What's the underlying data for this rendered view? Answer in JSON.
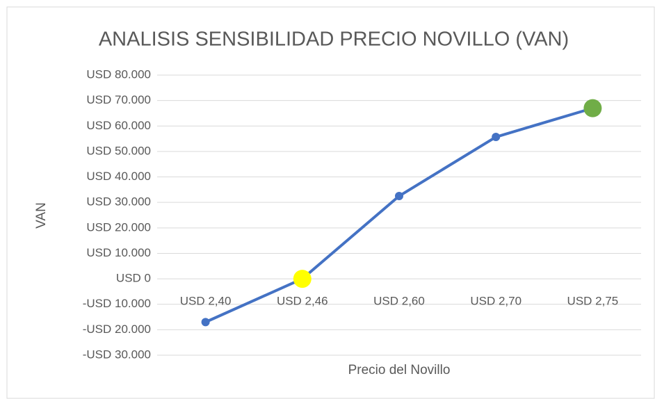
{
  "chart_data": {
    "type": "line",
    "title": "ANALISIS SENSIBILIDAD PRECIO NOVILLO (VAN)",
    "x_label": "Precio del Novillo",
    "y_label": "VAN",
    "categories": [
      "USD 2,40",
      "USD 2,46",
      "USD 2,60",
      "USD 2,70",
      "USD 2,75"
    ],
    "series": [
      {
        "name": "VAN",
        "color": "#4472c4",
        "values": [
          -17000,
          0,
          32500,
          55700,
          67000
        ],
        "marker_colors": [
          "#4472c4",
          "#ffff00",
          "#4472c4",
          "#4472c4",
          "#70ad47"
        ]
      }
    ],
    "ylim": [
      -30000,
      80000
    ],
    "yticks": [
      {
        "value": -30000,
        "label": "-USD 30.000"
      },
      {
        "value": -20000,
        "label": "-USD 20.000"
      },
      {
        "value": -10000,
        "label": "-USD 10.000"
      },
      {
        "value": 0,
        "label": "USD 0"
      },
      {
        "value": 10000,
        "label": "USD 10.000"
      },
      {
        "value": 20000,
        "label": "USD 20.000"
      },
      {
        "value": 30000,
        "label": "USD 30.000"
      },
      {
        "value": 40000,
        "label": "USD 40.000"
      },
      {
        "value": 50000,
        "label": "USD 50.000"
      },
      {
        "value": 60000,
        "label": "USD 60.000"
      },
      {
        "value": 70000,
        "label": "USD 70.000"
      },
      {
        "value": 80000,
        "label": "USD 80.000"
      }
    ],
    "grid": true
  }
}
